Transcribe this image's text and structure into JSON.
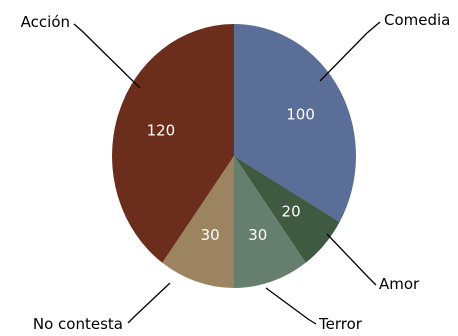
{
  "chart_data": {
    "type": "pie",
    "start_angle_deg": 0,
    "direction": "clockwise",
    "slices": [
      {
        "label": "Comedia",
        "value": 100,
        "color": "#5B6E98"
      },
      {
        "label": "Amor",
        "value": 20,
        "color": "#3F5A40"
      },
      {
        "label": "Terror",
        "value": 30,
        "color": "#667E6D"
      },
      {
        "label": "No contesta",
        "value": 30,
        "color": "#9C8460"
      },
      {
        "label": "Acción",
        "value": 120,
        "color": "#6B2D1C"
      }
    ],
    "legend": "none",
    "data_labels": "inside"
  }
}
